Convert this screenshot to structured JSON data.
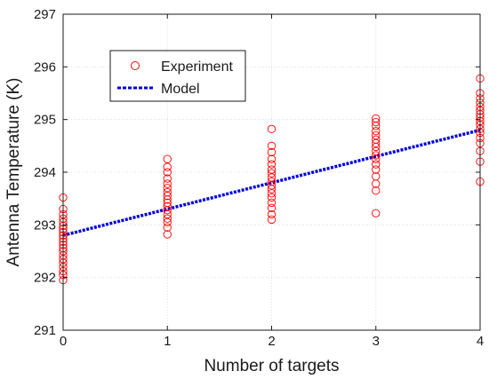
{
  "chart_data": {
    "type": "scatter",
    "title": "",
    "xlabel": "Number of targets",
    "ylabel": "Antenna Temperature (K)",
    "xlim": [
      0,
      4
    ],
    "ylim": [
      291,
      297
    ],
    "xticks": [
      0,
      1,
      2,
      3,
      4
    ],
    "yticks": [
      291,
      292,
      293,
      294,
      295,
      296,
      297
    ],
    "grid": true,
    "legend_position": "upper-left",
    "series": [
      {
        "name": "Experiment",
        "kind": "scatter",
        "marker": "open-circle",
        "color": "#ff0000",
        "points": [
          {
            "x": 0,
            "y": 291.95
          },
          {
            "x": 0,
            "y": 292.05
          },
          {
            "x": 0,
            "y": 292.12
          },
          {
            "x": 0,
            "y": 292.2
          },
          {
            "x": 0,
            "y": 292.28
          },
          {
            "x": 0,
            "y": 292.35
          },
          {
            "x": 0,
            "y": 292.42
          },
          {
            "x": 0,
            "y": 292.5
          },
          {
            "x": 0,
            "y": 292.56
          },
          {
            "x": 0,
            "y": 292.62
          },
          {
            "x": 0,
            "y": 292.68
          },
          {
            "x": 0,
            "y": 292.74
          },
          {
            "x": 0,
            "y": 292.8
          },
          {
            "x": 0,
            "y": 292.86
          },
          {
            "x": 0,
            "y": 292.92
          },
          {
            "x": 0,
            "y": 292.98
          },
          {
            "x": 0,
            "y": 293.05
          },
          {
            "x": 0,
            "y": 293.12
          },
          {
            "x": 0,
            "y": 293.2
          },
          {
            "x": 0,
            "y": 293.3
          },
          {
            "x": 0,
            "y": 293.52
          },
          {
            "x": 1,
            "y": 292.82
          },
          {
            "x": 1,
            "y": 292.95
          },
          {
            "x": 1,
            "y": 293.05
          },
          {
            "x": 1,
            "y": 293.12
          },
          {
            "x": 1,
            "y": 293.2
          },
          {
            "x": 1,
            "y": 293.28
          },
          {
            "x": 1,
            "y": 293.35
          },
          {
            "x": 1,
            "y": 293.42
          },
          {
            "x": 1,
            "y": 293.48
          },
          {
            "x": 1,
            "y": 293.55
          },
          {
            "x": 1,
            "y": 293.62
          },
          {
            "x": 1,
            "y": 293.7
          },
          {
            "x": 1,
            "y": 293.78
          },
          {
            "x": 1,
            "y": 293.88
          },
          {
            "x": 1,
            "y": 294.0
          },
          {
            "x": 1,
            "y": 294.1
          },
          {
            "x": 1,
            "y": 294.25
          },
          {
            "x": 2,
            "y": 293.1
          },
          {
            "x": 2,
            "y": 293.2
          },
          {
            "x": 2,
            "y": 293.32
          },
          {
            "x": 2,
            "y": 293.42
          },
          {
            "x": 2,
            "y": 293.52
          },
          {
            "x": 2,
            "y": 293.6
          },
          {
            "x": 2,
            "y": 293.68
          },
          {
            "x": 2,
            "y": 293.75
          },
          {
            "x": 2,
            "y": 293.82
          },
          {
            "x": 2,
            "y": 293.9
          },
          {
            "x": 2,
            "y": 293.98
          },
          {
            "x": 2,
            "y": 294.05
          },
          {
            "x": 2,
            "y": 294.15
          },
          {
            "x": 2,
            "y": 294.25
          },
          {
            "x": 2,
            "y": 294.38
          },
          {
            "x": 2,
            "y": 294.5
          },
          {
            "x": 2,
            "y": 294.82
          },
          {
            "x": 3,
            "y": 293.22
          },
          {
            "x": 3,
            "y": 293.65
          },
          {
            "x": 3,
            "y": 293.78
          },
          {
            "x": 3,
            "y": 293.92
          },
          {
            "x": 3,
            "y": 294.05
          },
          {
            "x": 3,
            "y": 294.15
          },
          {
            "x": 3,
            "y": 294.25
          },
          {
            "x": 3,
            "y": 294.32
          },
          {
            "x": 3,
            "y": 294.4
          },
          {
            "x": 3,
            "y": 294.48
          },
          {
            "x": 3,
            "y": 294.55
          },
          {
            "x": 3,
            "y": 294.62
          },
          {
            "x": 3,
            "y": 294.7
          },
          {
            "x": 3,
            "y": 294.78
          },
          {
            "x": 3,
            "y": 294.88
          },
          {
            "x": 3,
            "y": 294.95
          },
          {
            "x": 3,
            "y": 295.02
          },
          {
            "x": 4,
            "y": 293.82
          },
          {
            "x": 4,
            "y": 294.2
          },
          {
            "x": 4,
            "y": 294.4
          },
          {
            "x": 4,
            "y": 294.55
          },
          {
            "x": 4,
            "y": 294.65
          },
          {
            "x": 4,
            "y": 294.75
          },
          {
            "x": 4,
            "y": 294.82
          },
          {
            "x": 4,
            "y": 294.9
          },
          {
            "x": 4,
            "y": 294.97
          },
          {
            "x": 4,
            "y": 295.04
          },
          {
            "x": 4,
            "y": 295.1
          },
          {
            "x": 4,
            "y": 295.17
          },
          {
            "x": 4,
            "y": 295.24
          },
          {
            "x": 4,
            "y": 295.32
          },
          {
            "x": 4,
            "y": 295.4
          },
          {
            "x": 4,
            "y": 295.5
          },
          {
            "x": 4,
            "y": 295.78
          }
        ]
      },
      {
        "name": "Model",
        "kind": "line",
        "style": "dashed",
        "color": "#0000dd",
        "x": [
          0,
          4
        ],
        "y": [
          292.8,
          294.8
        ]
      }
    ]
  }
}
